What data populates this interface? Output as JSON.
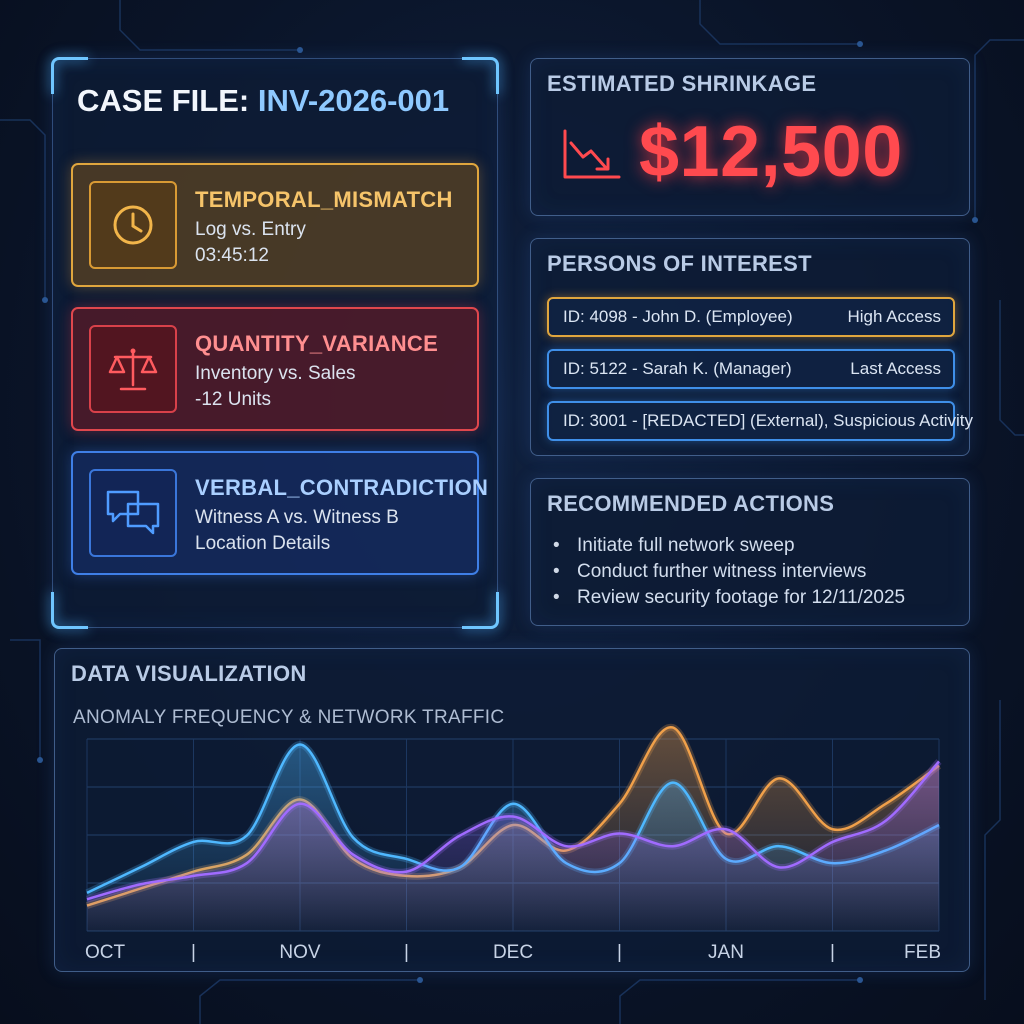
{
  "case_file": {
    "label": "CASE FILE:",
    "id": " INV-2026-001",
    "findings": [
      {
        "title": "TEMPORAL_MISMATCH",
        "line1": "Log vs. Entry",
        "line2": "03:45:12",
        "icon": "clock-icon",
        "color": "#e0a63e"
      },
      {
        "title": "QUANTITY_VARIANCE",
        "line1": "Inventory vs. Sales",
        "line2": "-12 Units",
        "icon": "scales-icon",
        "color": "#e0474d"
      },
      {
        "title": "VERBAL_CONTRADICTION",
        "line1": "Witness A vs. Witness B",
        "line2": "Location Details",
        "icon": "chat-bubbles-icon",
        "color": "#3f7fe6"
      }
    ]
  },
  "shrinkage": {
    "title": "ESTIMATED SHRINKAGE",
    "value": "$12,500",
    "icon": "trend-down-icon",
    "color": "#ff4a4f"
  },
  "persons": {
    "title": "PERSONS OF INTEREST",
    "items": [
      {
        "id": "ID: 4098 - John D. (Employee)",
        "status": "High Access",
        "color": "#e0a63e"
      },
      {
        "id": "ID: 5122 - Sarah K. (Manager)",
        "status": "Last Access",
        "color": "#3f8fe8"
      },
      {
        "id": "ID: 3001 - [REDACTED] (External), Suspicious Activity",
        "status": "",
        "color": "#3f8fe8"
      }
    ]
  },
  "actions": {
    "title": "RECOMMENDED ACTIONS",
    "items": [
      "Initiate full network sweep",
      "Conduct further witness interviews",
      "Review security footage for 12/11/2025"
    ]
  },
  "visualization": {
    "title": "DATA VISUALIZATION",
    "subtitle": "ANOMALY FREQUENCY & NETWORK TRAFFIC"
  },
  "chart_data": {
    "type": "area",
    "title": "ANOMALY FREQUENCY & NETWORK TRAFFIC",
    "categories": [
      "OCT",
      "NOV",
      "DEC",
      "JAN",
      "FEB"
    ],
    "separator": "|",
    "ylim": [
      0,
      100
    ],
    "grid": true,
    "x": [
      0,
      0.25,
      0.5,
      0.75,
      1,
      1.25,
      1.5,
      1.75,
      2,
      2.25,
      2.5,
      2.75,
      3,
      3.25,
      3.5,
      3.75,
      4
    ],
    "series": [
      {
        "color": "#f0a04a",
        "values": [
          12,
          20,
          28,
          36,
          62,
          34,
          26,
          30,
          50,
          38,
          60,
          96,
          46,
          72,
          48,
          60,
          78
        ]
      },
      {
        "color": "#4fb8ff",
        "values": [
          18,
          30,
          42,
          45,
          88,
          44,
          34,
          30,
          60,
          32,
          32,
          70,
          34,
          40,
          32,
          38,
          50
        ]
      },
      {
        "color": "#a06bff",
        "values": [
          15,
          22,
          26,
          32,
          60,
          36,
          28,
          45,
          54,
          40,
          46,
          40,
          48,
          30,
          42,
          52,
          80
        ]
      }
    ]
  }
}
